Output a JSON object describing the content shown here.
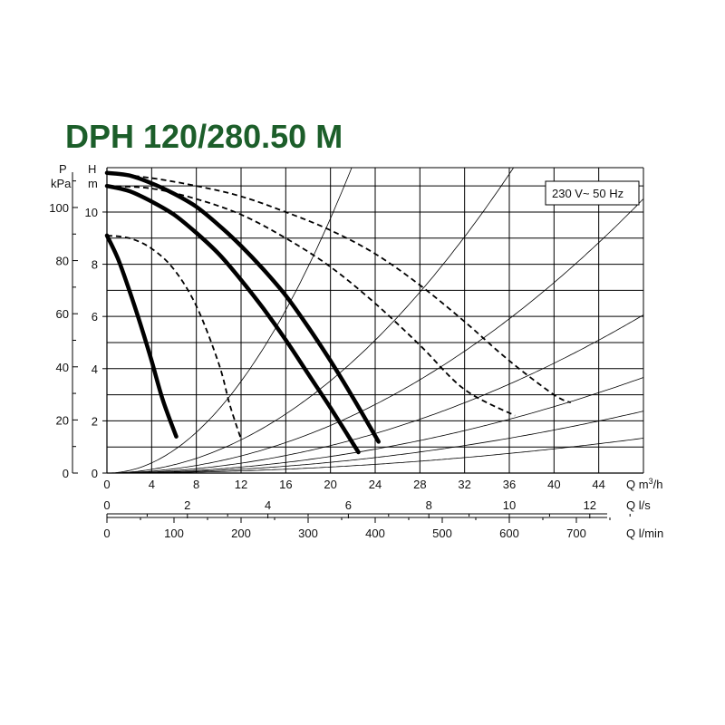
{
  "chart_data": {
    "type": "line",
    "title": "DPH 120/280.50 M",
    "legend_label": "230 V~ 50 Hz",
    "legend_position": "top-right",
    "grid": true,
    "colors": {
      "title": "#1c5e2a",
      "grid": "#000000",
      "curve": "#000000"
    },
    "y_left_axis": {
      "unit_top": "P",
      "unit_bottom": "kPa",
      "ticks": [
        0,
        20,
        40,
        60,
        80,
        100
      ],
      "range": [
        0,
        115
      ]
    },
    "y_axis": {
      "unit_top": "H",
      "unit_bottom": "m",
      "ticks": [
        0,
        2,
        4,
        6,
        8,
        10
      ],
      "range": [
        0,
        11.7
      ]
    },
    "x_axis": {
      "label": "Q m³/h",
      "label_base": "Q m",
      "label_sup": "3",
      "label_tail": "/h",
      "ticks": [
        0,
        4,
        8,
        12,
        16,
        20,
        24,
        28,
        32,
        36,
        40,
        44
      ],
      "range": [
        0,
        48
      ]
    },
    "x_axis_ls": {
      "label": "Q l/s",
      "ticks": [
        0,
        2,
        4,
        6,
        8,
        10,
        12
      ]
    },
    "x_axis_lmin": {
      "label": "Q l/min",
      "ticks": [
        0,
        100,
        200,
        300,
        400,
        500,
        600,
        700
      ]
    },
    "series": [
      {
        "style": "solid",
        "x": [
          0,
          1,
          2,
          3,
          4,
          5,
          6.2
        ],
        "y": [
          9.1,
          8.2,
          7.0,
          5.7,
          4.3,
          2.8,
          1.4
        ]
      },
      {
        "style": "dashed",
        "x": [
          0,
          2,
          4,
          6,
          8,
          10,
          11,
          12
        ],
        "y": [
          9.1,
          9.0,
          8.6,
          7.8,
          6.4,
          4.2,
          2.6,
          1.3
        ]
      },
      {
        "style": "solid",
        "x": [
          0,
          2,
          4,
          6,
          8,
          10,
          12,
          14,
          16,
          18,
          20,
          22.5
        ],
        "y": [
          11.0,
          10.8,
          10.4,
          9.9,
          9.2,
          8.4,
          7.4,
          6.3,
          5.1,
          3.8,
          2.5,
          0.8
        ]
      },
      {
        "style": "solid",
        "x": [
          0,
          2,
          4,
          6,
          8,
          10,
          12,
          14,
          16,
          18,
          20,
          22,
          24.3
        ],
        "y": [
          11.5,
          11.4,
          11.1,
          10.7,
          10.2,
          9.5,
          8.7,
          7.8,
          6.8,
          5.6,
          4.3,
          2.9,
          1.2
        ]
      },
      {
        "style": "dashed",
        "x": [
          0,
          4,
          8,
          12,
          16,
          20,
          24,
          28,
          32,
          36.5
        ],
        "y": [
          11.0,
          10.9,
          10.5,
          9.9,
          9.0,
          7.9,
          6.5,
          4.9,
          3.2,
          2.2
        ]
      },
      {
        "style": "dashed",
        "x": [
          0,
          4,
          8,
          12,
          16,
          20,
          24,
          28,
          32,
          36,
          40,
          41.5
        ],
        "y": [
          11.5,
          11.3,
          11.0,
          10.6,
          10.0,
          9.3,
          8.4,
          7.2,
          5.8,
          4.3,
          3.0,
          2.7
        ]
      }
    ],
    "system_curves": [
      {
        "label": "",
        "k": 0.0244
      },
      {
        "label": "",
        "k": 0.00884
      },
      {
        "label": "",
        "k": 0.00456
      },
      {
        "label": "",
        "k": 0.00263
      },
      {
        "label": "",
        "k": 0.00159
      },
      {
        "label": "",
        "k": 0.00103
      },
      {
        "label": "",
        "k": 0.00058
      }
    ]
  }
}
